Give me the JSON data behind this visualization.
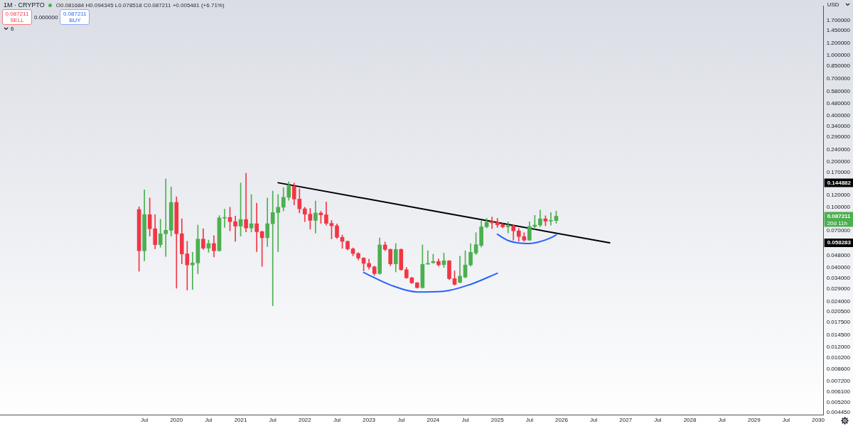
{
  "chart_data": {
    "type": "candlestick",
    "title": "1M · CRYPTO",
    "subtitle": "O0.081684 H0.094345 L0.078518 C0.087211 +0.005481 (+6.71%)",
    "ylabel": "USD",
    "annotations": [
      "0.087211",
      "SELL",
      "0.000000",
      "0.087211",
      "BUY",
      "6",
      "0.144882",
      "0.087211",
      "20d 11h",
      "0.058283"
    ],
    "x": [
      "2019-06",
      "2019-07",
      "2019-08",
      "2019-09",
      "2019-10",
      "2019-11",
      "2019-12",
      "2020-01",
      "2020-02",
      "2020-03",
      "2020-04",
      "2020-05",
      "2020-06",
      "2020-07",
      "2020-08",
      "2020-09",
      "2020-10",
      "2020-11",
      "2020-12",
      "2021-01",
      "2021-02",
      "2021-03",
      "2021-04",
      "2021-05",
      "2021-06",
      "2021-07",
      "2021-08",
      "2021-09",
      "2021-10",
      "2021-11",
      "2021-12",
      "2022-01",
      "2022-02",
      "2022-03",
      "2022-04",
      "2022-05",
      "2022-06",
      "2022-07",
      "2022-08",
      "2022-09",
      "2022-10",
      "2022-11",
      "2022-12",
      "2023-01",
      "2023-02",
      "2023-03",
      "2023-04",
      "2023-05",
      "2023-06",
      "2023-07",
      "2023-08",
      "2023-09",
      "2023-10",
      "2023-11",
      "2023-12",
      "2024-01",
      "2024-02",
      "2024-03",
      "2024-04",
      "2024-05",
      "2024-06",
      "2024-07",
      "2024-08",
      "2024-09",
      "2024-10",
      "2024-11",
      "2024-12",
      "2025-01",
      "2025-02",
      "2025-03",
      "2025-04",
      "2025-05",
      "2025-06",
      "2025-07",
      "2025-08",
      "2025-09",
      "2025-10",
      "2025-11",
      "2025-12"
    ],
    "ohlc": [
      [
        0.0966,
        0.1007,
        0.0379,
        0.0517
      ],
      [
        0.0517,
        0.1301,
        0.0444,
        0.0894
      ],
      [
        0.0894,
        0.115,
        0.0645,
        0.0722
      ],
      [
        0.0722,
        0.0894,
        0.0532,
        0.0567
      ],
      [
        0.0567,
        0.0834,
        0.0545,
        0.0669
      ],
      [
        0.0669,
        0.1534,
        0.0474,
        0.0705
      ],
      [
        0.0705,
        0.1357,
        0.0645,
        0.1076
      ],
      [
        0.1076,
        0.1171,
        0.0293,
        0.0669
      ],
      [
        0.0669,
        0.0839,
        0.0424,
        0.0493
      ],
      [
        0.0493,
        0.0597,
        0.0285,
        0.0417
      ],
      [
        0.0417,
        0.0505,
        0.0288,
        0.043
      ],
      [
        0.043,
        0.0763,
        0.0365,
        0.0617
      ],
      [
        0.0617,
        0.0722,
        0.0527,
        0.0538
      ],
      [
        0.0538,
        0.0608,
        0.0505,
        0.0577
      ],
      [
        0.0577,
        0.065,
        0.0471,
        0.0517
      ],
      [
        0.0517,
        0.0881,
        0.0514,
        0.0851
      ],
      [
        0.0848,
        0.0972,
        0.0735,
        0.0854
      ],
      [
        0.0857,
        0.1,
        0.0699,
        0.0804
      ],
      [
        0.0804,
        0.0875,
        0.0597,
        0.0751
      ],
      [
        0.0751,
        0.1445,
        0.0645,
        0.083
      ],
      [
        0.083,
        0.1674,
        0.0687,
        0.073
      ],
      [
        0.073,
        0.1212,
        0.0687,
        0.0779
      ],
      [
        0.0779,
        0.1065,
        0.051,
        0.069
      ],
      [
        0.069,
        0.0699,
        0.0408,
        0.063
      ],
      [
        0.063,
        0.115,
        0.0551,
        0.0779
      ],
      [
        0.0779,
        0.1278,
        0.0225,
        0.0922
      ],
      [
        0.0922,
        0.1212,
        0.051,
        0.1
      ],
      [
        0.1,
        0.1347,
        0.0946,
        0.1162
      ],
      [
        0.1162,
        0.1471,
        0.1111,
        0.1381
      ],
      [
        0.1371,
        0.1445,
        0.1035,
        0.1131
      ],
      [
        0.1131,
        0.1324,
        0.0916,
        0.0976
      ],
      [
        0.0976,
        0.1,
        0.0804,
        0.09
      ],
      [
        0.09,
        0.0982,
        0.0717,
        0.0819
      ],
      [
        0.0819,
        0.1099,
        0.0676,
        0.0916
      ],
      [
        0.0916,
        0.0939,
        0.0783,
        0.0891
      ],
      [
        0.0891,
        0.108,
        0.0761,
        0.0783
      ],
      [
        0.0783,
        0.0819,
        0.0619,
        0.0755
      ],
      [
        0.0755,
        0.0777,
        0.0623,
        0.0634
      ],
      [
        0.0634,
        0.0657,
        0.0536,
        0.0596
      ],
      [
        0.0596,
        0.06,
        0.0523,
        0.0532
      ],
      [
        0.0532,
        0.054,
        0.0479,
        0.0496
      ],
      [
        0.0496,
        0.0503,
        0.045,
        0.0463
      ],
      [
        0.0463,
        0.0466,
        0.0381,
        0.0427
      ],
      [
        0.0427,
        0.0455,
        0.0391,
        0.0405
      ],
      [
        0.0405,
        0.041,
        0.0356,
        0.0366
      ],
      [
        0.0366,
        0.0628,
        0.0362,
        0.0565
      ],
      [
        0.0565,
        0.0591,
        0.0517,
        0.0528
      ],
      [
        0.0528,
        0.0532,
        0.0412,
        0.0424
      ],
      [
        0.0424,
        0.0577,
        0.0375,
        0.0528
      ],
      [
        0.0528,
        0.0532,
        0.0384,
        0.0388
      ],
      [
        0.0388,
        0.0402,
        0.034,
        0.0343
      ],
      [
        0.0343,
        0.0347,
        0.0315,
        0.0318
      ],
      [
        0.0318,
        0.0321,
        0.0293,
        0.0296
      ],
      [
        0.0296,
        0.0565,
        0.0293,
        0.0421
      ],
      [
        0.0422,
        0.0517,
        0.0421,
        0.0427
      ],
      [
        0.0431,
        0.0491,
        0.0428,
        0.044
      ],
      [
        0.044,
        0.0458,
        0.0409,
        0.0418
      ],
      [
        0.0419,
        0.05,
        0.0402,
        0.0445
      ],
      [
        0.0444,
        0.0446,
        0.0334,
        0.0339
      ],
      [
        0.0339,
        0.0381,
        0.0307,
        0.0311
      ],
      [
        0.032,
        0.0476,
        0.0318,
        0.0352
      ],
      [
        0.0347,
        0.0517,
        0.0342,
        0.0417
      ],
      [
        0.0417,
        0.0575,
        0.0409,
        0.0505
      ],
      [
        0.05,
        0.068,
        0.0488,
        0.0567
      ],
      [
        0.0561,
        0.081,
        0.0547,
        0.0743
      ],
      [
        0.0743,
        0.0845,
        0.073,
        0.0796
      ],
      [
        0.0804,
        0.0863,
        0.0724,
        0.0788
      ],
      [
        0.0794,
        0.0845,
        0.0737,
        0.0766
      ],
      [
        0.0769,
        0.0783,
        0.073,
        0.0743
      ],
      [
        0.0743,
        0.0802,
        0.0676,
        0.0755
      ],
      [
        0.0755,
        0.0769,
        0.0608,
        0.0699
      ],
      [
        0.0699,
        0.0724,
        0.0596,
        0.0641
      ],
      [
        0.0641,
        0.068,
        0.0596,
        0.0608
      ],
      [
        0.0608,
        0.0802,
        0.0602,
        0.0747
      ],
      [
        0.0747,
        0.0884,
        0.0717,
        0.0763
      ],
      [
        0.0763,
        0.0959,
        0.0743,
        0.0839
      ],
      [
        0.0839,
        0.0879,
        0.0755,
        0.081
      ],
      [
        0.081,
        0.0922,
        0.0761,
        0.0817
      ],
      [
        0.081684,
        0.094345,
        0.078518,
        0.087211
      ]
    ],
    "colors": [
      "#f23645",
      "#4caf50",
      "#f23645",
      "#f23645",
      "#4caf50",
      "#4caf50",
      "#4caf50",
      "#f23645",
      "#f23645",
      "#f23645",
      "#4caf50",
      "#4caf50",
      "#f23645",
      "#4caf50",
      "#f23645",
      "#4caf50",
      "#4caf50",
      "#f23645",
      "#f23645",
      "#4caf50",
      "#f23645",
      "#4caf50",
      "#f23645",
      "#f23645",
      "#4caf50",
      "#4caf50",
      "#4caf50",
      "#4caf50",
      "#4caf50",
      "#f23645",
      "#f23645",
      "#f23645",
      "#f23645",
      "#4caf50",
      "#f23645",
      "#f23645",
      "#f23645",
      "#f23645",
      "#f23645",
      "#f23645",
      "#f23645",
      "#f23645",
      "#f23645",
      "#f23645",
      "#f23645",
      "#4caf50",
      "#f23645",
      "#f23645",
      "#4caf50",
      "#f23645",
      "#f23645",
      "#f23645",
      "#f23645",
      "#4caf50",
      "#4caf50",
      "#4caf50",
      "#f23645",
      "#4caf50",
      "#f23645",
      "#f23645",
      "#4caf50",
      "#4caf50",
      "#4caf50",
      "#4caf50",
      "#4caf50",
      "#4caf50",
      "#f23645",
      "#f23645",
      "#f23645",
      "#4caf50",
      "#f23645",
      "#f23645",
      "#f23645",
      "#4caf50",
      "#4caf50",
      "#4caf50",
      "#f23645",
      "#4caf50",
      "#4caf50"
    ],
    "series": [
      {
        "type": "line",
        "color": "#000000",
        "x": [
          "2021-08",
          "2026-10"
        ],
        "values": [
          0.144882,
          0.058283
        ]
      },
      {
        "type": "line",
        "color": "#2962ff",
        "x": [
          "2022-12",
          "2023-05",
          "2023-10",
          "2024-03",
          "2024-08",
          "2025-01"
        ],
        "values": [
          0.0372,
          0.0308,
          0.0277,
          0.028,
          0.0311,
          0.0368
        ]
      },
      {
        "type": "line",
        "color": "#2962ff",
        "x": [
          "2025-01",
          "2025-03",
          "2025-05",
          "2025-07",
          "2025-09",
          "2025-11",
          "2025-12"
        ],
        "values": [
          0.0664,
          0.0604,
          0.0582,
          0.0577,
          0.0594,
          0.063,
          0.0657
        ]
      }
    ],
    "log": true,
    "xlim": [
      "2017-04",
      "2030-02"
    ],
    "ylim": [
      0.0043,
      2.1
    ],
    "xticks": [
      {
        "value": "2019-07",
        "label": "Jul"
      },
      {
        "value": "2020-01",
        "label": "2020"
      },
      {
        "value": "2020-07",
        "label": "Jul"
      },
      {
        "value": "2021-01",
        "label": "2021"
      },
      {
        "value": "2021-07",
        "label": "Jul"
      },
      {
        "value": "2022-01",
        "label": "2022"
      },
      {
        "value": "2022-07",
        "label": "Jul"
      },
      {
        "value": "2023-01",
        "label": "2023"
      },
      {
        "value": "2023-07",
        "label": "Jul"
      },
      {
        "value": "2024-01",
        "label": "2024"
      },
      {
        "value": "2024-07",
        "label": "Jul"
      },
      {
        "value": "2025-01",
        "label": "2025"
      },
      {
        "value": "2025-07",
        "label": "Jul"
      },
      {
        "value": "2026-01",
        "label": "2026"
      },
      {
        "value": "2026-07",
        "label": "Jul"
      },
      {
        "value": "2027-01",
        "label": "2027"
      },
      {
        "value": "2027-07",
        "label": "Jul"
      },
      {
        "value": "2028-01",
        "label": "2028"
      },
      {
        "value": "2028-07",
        "label": "Jul"
      },
      {
        "value": "2029-01",
        "label": "2029"
      },
      {
        "value": "2029-07",
        "label": "Jul"
      },
      {
        "value": "2030-01",
        "label": "2030"
      }
    ],
    "yticks": [
      {
        "value": 1.7,
        "label": "1.700000"
      },
      {
        "value": 1.45,
        "label": "1.450000"
      },
      {
        "value": 1.2,
        "label": "1.200000"
      },
      {
        "value": 1,
        "label": "1.000000"
      },
      {
        "value": 0.85,
        "label": "0.850000"
      },
      {
        "value": 0.7,
        "label": "0.700000"
      },
      {
        "value": 0.58,
        "label": "0.580000"
      },
      {
        "value": 0.48,
        "label": "0.480000"
      },
      {
        "value": 0.4,
        "label": "0.400000"
      },
      {
        "value": 0.34,
        "label": "0.340000"
      },
      {
        "value": 0.29,
        "label": "0.290000"
      },
      {
        "value": 0.24,
        "label": "0.240000"
      },
      {
        "value": 0.2,
        "label": "0.200000"
      },
      {
        "value": 0.17,
        "label": "0.170000"
      },
      {
        "value": 0.12,
        "label": "0.120000"
      },
      {
        "value": 0.1,
        "label": "0.100000"
      },
      {
        "value": 0.07,
        "label": "0.070000"
      },
      {
        "value": 0.048,
        "label": "0.048000"
      },
      {
        "value": 0.04,
        "label": "0.040000"
      },
      {
        "value": 0.034,
        "label": "0.034000"
      },
      {
        "value": 0.029,
        "label": "0.029000"
      },
      {
        "value": 0.024,
        "label": "0.024000"
      },
      {
        "value": 0.0205,
        "label": "0.020500"
      },
      {
        "value": 0.0175,
        "label": "0.017500"
      },
      {
        "value": 0.0145,
        "label": "0.014500"
      },
      {
        "value": 0.012,
        "label": "0.012000"
      },
      {
        "value": 0.0102,
        "label": "0.010200"
      },
      {
        "value": 0.0086,
        "label": "0.008600"
      },
      {
        "value": 0.0072,
        "label": "0.007200"
      },
      {
        "value": 0.0061,
        "label": "0.006100"
      },
      {
        "value": 0.0052,
        "label": "0.005200"
      },
      {
        "value": 0.00445,
        "label": "0.004450"
      }
    ]
  }
}
